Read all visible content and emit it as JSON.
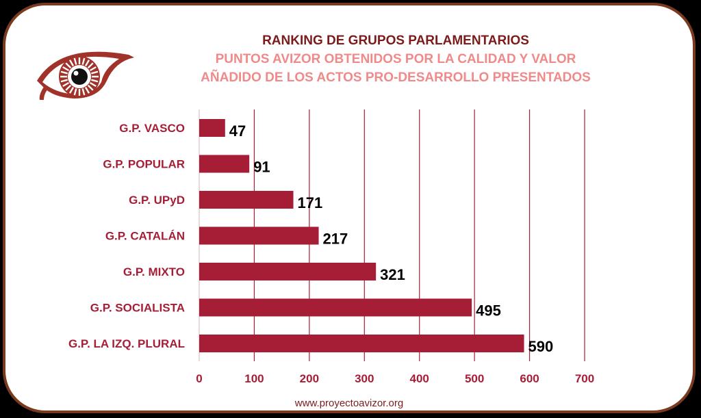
{
  "header": {
    "title": "RANKING DE GRUPOS PARLAMENTARIOS",
    "subtitle_line1": "PUNTOS AVIZOR OBTENIDOS POR LA CALIDAD Y VALOR",
    "subtitle_line2": "AÑADIDO DE LOS ACTOS PRO-DESARROLLO PRESENTADOS"
  },
  "logo": {
    "icon": "eye-icon"
  },
  "footer": {
    "url_text": "www.proyectoavizor.org"
  },
  "colors": {
    "bar": "#a51e36",
    "title": "#7b1b1b",
    "subtitle": "#f08a8a",
    "border": "#7a3a1f",
    "grid": "#a51e36"
  },
  "chart_data": {
    "type": "bar",
    "orientation": "horizontal",
    "categories": [
      "G.P. VASCO",
      "G.P. POPULAR",
      "G.P. UPyD",
      "G.P. CATALÁN",
      "G.P. MIXTO",
      "G.P. SOCIALISTA",
      "G.P. LA IZQ. PLURAL"
    ],
    "values": [
      47,
      91,
      171,
      217,
      321,
      495,
      590
    ],
    "xlim": [
      0,
      700
    ],
    "xticks": [
      "0",
      "100",
      "200",
      "300",
      "400",
      "500",
      "600",
      "700"
    ],
    "grid": true,
    "data_labels": true,
    "legend": "none"
  }
}
